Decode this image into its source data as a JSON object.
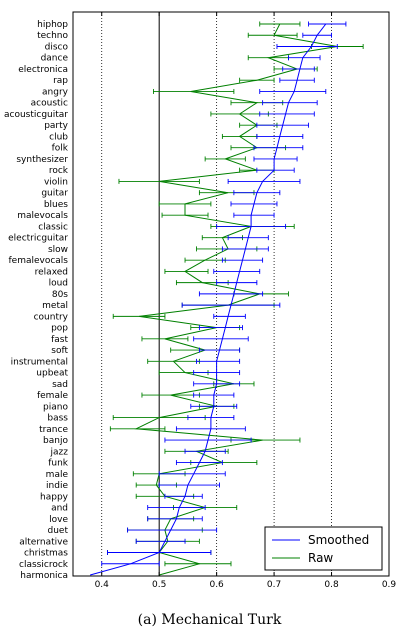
{
  "caption": "(a) Mechanical Turk",
  "chart_data": {
    "type": "line",
    "xlim": [
      0.35,
      0.9
    ],
    "x_ticks": [
      "0.4",
      "0.5",
      "0.6",
      "0.7",
      "0.8",
      "0.9"
    ],
    "vertical_lines": {
      "solid": [
        0.5
      ],
      "dotted": [
        0.4,
        0.6,
        0.7,
        0.8
      ]
    },
    "legend": {
      "placement": "bottom-right",
      "entries": [
        "Smoothed",
        "Raw"
      ]
    },
    "colors": {
      "smoothed": "#0000ff",
      "raw": "#008000"
    },
    "categories": [
      "hiphop",
      "techno",
      "disco",
      "dance",
      "electronica",
      "rap",
      "angry",
      "acoustic",
      "acousticguitar",
      "party",
      "club",
      "folk",
      "synthesizer",
      "rock",
      "violin",
      "guitar",
      "blues",
      "malevocals",
      "classic",
      "electricguitar",
      "slow",
      "femalevocals",
      "relaxed",
      "loud",
      "80s",
      "metal",
      "country",
      "pop",
      "fast",
      "soft",
      "instrumental",
      "upbeat",
      "sad",
      "female",
      "piano",
      "bass",
      "trance",
      "banjo",
      "jazz",
      "funk",
      "male",
      "indie",
      "happy",
      "and",
      "love",
      "duet",
      "alternative",
      "christmas",
      "classicrock",
      "harmonica"
    ],
    "series": [
      {
        "name": "Smoothed",
        "values": [
          0.79,
          0.775,
          0.765,
          0.75,
          0.745,
          0.74,
          0.735,
          0.725,
          0.72,
          0.715,
          0.71,
          0.705,
          0.7,
          0.7,
          0.68,
          0.67,
          0.665,
          0.66,
          0.66,
          0.655,
          0.65,
          0.645,
          0.64,
          0.635,
          0.63,
          0.625,
          0.62,
          0.615,
          0.61,
          0.605,
          0.6,
          0.6,
          0.6,
          0.595,
          0.595,
          0.59,
          0.59,
          0.585,
          0.58,
          0.57,
          0.56,
          0.55,
          0.545,
          0.535,
          0.53,
          0.52,
          0.51,
          0.5,
          0.45,
          0.38
        ],
        "err_low": [
          0.76,
          0.75,
          0.705,
          0.725,
          0.715,
          0.71,
          0.675,
          0.68,
          0.675,
          0.67,
          0.67,
          0.665,
          0.665,
          0.67,
          0.62,
          0.63,
          0.625,
          0.63,
          0.6,
          0.62,
          0.61,
          0.61,
          0.595,
          0.6,
          0.57,
          0.54,
          0.595,
          0.57,
          0.56,
          0.57,
          0.565,
          0.56,
          0.56,
          0.56,
          0.555,
          0.55,
          0.53,
          0.51,
          0.545,
          0.53,
          0.5,
          0.5,
          0.51,
          0.48,
          0.48,
          0.445,
          0.46,
          0.41,
          0.4,
          0.38
        ],
        "err_high": [
          0.825,
          0.8,
          0.81,
          0.78,
          0.77,
          0.77,
          0.79,
          0.775,
          0.77,
          0.76,
          0.75,
          0.75,
          0.74,
          0.735,
          0.745,
          0.71,
          0.705,
          0.7,
          0.72,
          0.69,
          0.69,
          0.68,
          0.675,
          0.67,
          0.68,
          0.71,
          0.65,
          0.645,
          0.655,
          0.64,
          0.64,
          0.64,
          0.64,
          0.63,
          0.635,
          0.63,
          0.65,
          0.66,
          0.615,
          0.61,
          0.615,
          0.605,
          0.575,
          0.58,
          0.575,
          0.6,
          0.545,
          0.59,
          0.5,
          0.38
        ]
      },
      {
        "name": "Raw",
        "values": [
          0.71,
          0.7,
          0.81,
          0.69,
          0.74,
          0.67,
          0.555,
          0.67,
          0.64,
          0.67,
          0.64,
          0.67,
          0.615,
          0.67,
          0.5,
          0.62,
          0.545,
          0.545,
          0.66,
          0.61,
          0.62,
          0.58,
          0.545,
          0.575,
          0.675,
          0.62,
          0.465,
          0.6,
          0.51,
          0.58,
          0.525,
          0.545,
          0.63,
          0.52,
          0.6,
          0.5,
          0.46,
          0.68,
          0.565,
          0.61,
          0.5,
          0.495,
          0.51,
          0.58,
          0.52,
          0.51,
          0.515,
          0.5,
          0.57,
          0.5
        ],
        "err_low": [
          0.675,
          0.655,
          0.765,
          0.655,
          0.7,
          0.64,
          0.49,
          0.625,
          0.59,
          0.64,
          0.61,
          0.625,
          0.58,
          0.64,
          0.43,
          0.57,
          0.5,
          0.505,
          0.59,
          0.575,
          0.565,
          0.545,
          0.51,
          0.53,
          0.63,
          0.54,
          0.42,
          0.555,
          0.47,
          0.52,
          0.48,
          0.5,
          0.595,
          0.47,
          0.57,
          0.42,
          0.415,
          0.625,
          0.51,
          0.555,
          0.455,
          0.46,
          0.46,
          0.525,
          0.48,
          0.445,
          0.46,
          0.41,
          0.51,
          0.5
        ],
        "err_high": [
          0.745,
          0.74,
          0.855,
          0.725,
          0.775,
          0.7,
          0.63,
          0.715,
          0.69,
          0.705,
          0.67,
          0.72,
          0.65,
          0.7,
          0.57,
          0.665,
          0.59,
          0.585,
          0.735,
          0.645,
          0.67,
          0.615,
          0.585,
          0.62,
          0.725,
          0.7,
          0.51,
          0.64,
          0.55,
          0.64,
          0.57,
          0.585,
          0.665,
          0.57,
          0.63,
          0.58,
          0.51,
          0.745,
          0.62,
          0.67,
          0.545,
          0.53,
          0.56,
          0.635,
          0.56,
          0.575,
          0.57,
          0.59,
          0.625,
          0.5
        ]
      }
    ]
  }
}
